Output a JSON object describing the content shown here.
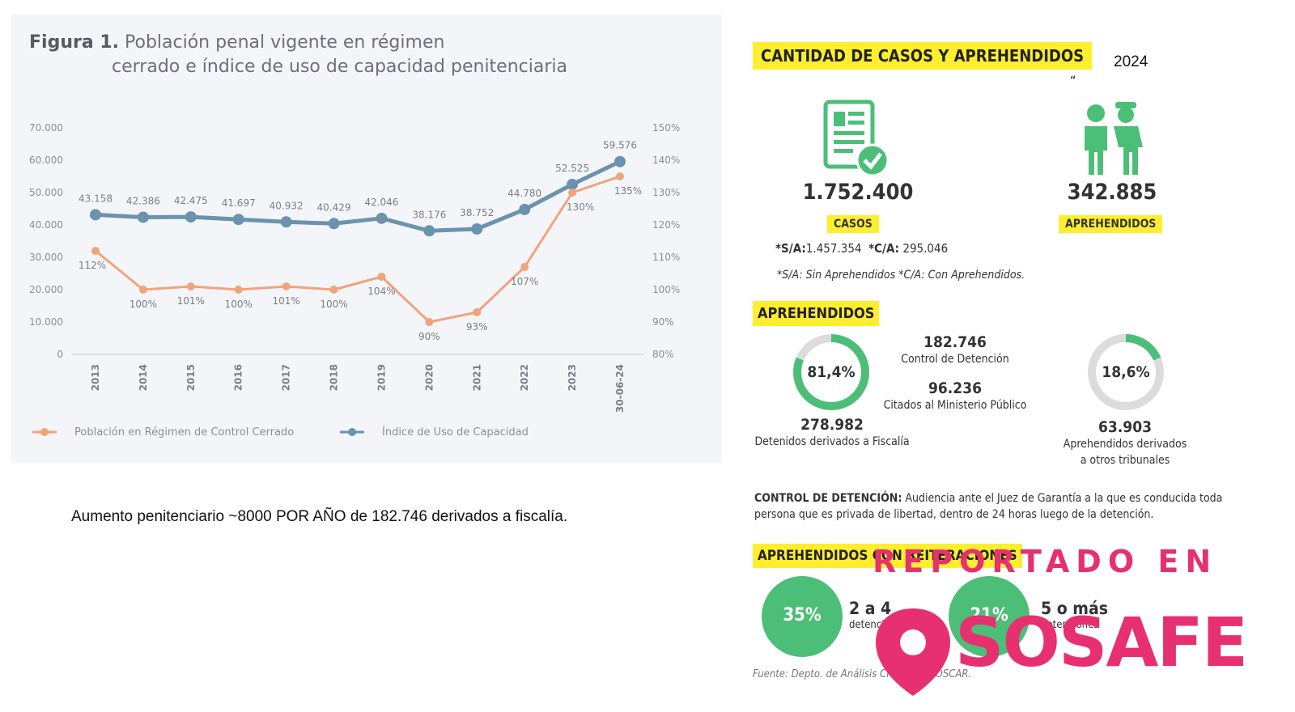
{
  "chart_data": {
    "type": "line",
    "title_label": "Figura 1.",
    "title_line1": "Población penal vigente en régimen",
    "title_line2": "cerrado e índice de uso de capacidad penitenciaria",
    "categories": [
      "2013",
      "2014",
      "2015",
      "2016",
      "2017",
      "2018",
      "2019",
      "2020",
      "2021",
      "2022",
      "2023",
      "30-06-24"
    ],
    "y_left_ticks": [
      "70.000",
      "60.000",
      "50.000",
      "40.000",
      "30.000",
      "20.000",
      "10.000",
      "0"
    ],
    "y_right_ticks": [
      "150%",
      "140%",
      "130%",
      "120%",
      "110%",
      "100%",
      "90%",
      "80%"
    ],
    "ylim_left": [
      0,
      70000
    ],
    "ylim_right": [
      80,
      150
    ],
    "grid": false,
    "legend_position": "bottom",
    "series": [
      {
        "name": "Índice de Uso de Capacidad",
        "color": "#6b93ad",
        "axis": "left",
        "values": [
          43158,
          42386,
          42475,
          41697,
          40932,
          40429,
          42046,
          38176,
          38752,
          44780,
          52525,
          59576
        ],
        "labels": [
          "43.158",
          "42.386",
          "42.475",
          "41.697",
          "40.932",
          "40.429",
          "42.046",
          "38.176",
          "38.752",
          "44.780",
          "52.525",
          "59.576"
        ]
      },
      {
        "name": "Población en Régimen de Control Cerrado",
        "color": "#f0a47c",
        "axis": "right",
        "values": [
          112,
          100,
          101,
          100,
          101,
          100,
          104,
          90,
          93,
          107,
          130,
          135
        ],
        "labels": [
          "112%",
          "100%",
          "101%",
          "100%",
          "101%",
          "100%",
          "104%",
          "90%",
          "93%",
          "107%",
          "130%",
          "135%"
        ]
      }
    ]
  },
  "note": "Aumento penitenciario ~8000 POR AÑO de 182.746 derivados a fiscalía.",
  "infographic": {
    "header": "CANTIDAD DE CASOS Y APREHENDIDOS",
    "year": "2024",
    "quote_mark": "“",
    "casos_value": "1.752.400",
    "casos_label": "CASOS",
    "aprehendidos_value": "342.885",
    "aprehendidos_label": "APREHENDIDOS",
    "sa_label": "*S/A:",
    "sa_value": "1.457.354",
    "ca_label": "*C/A:",
    "ca_value": "295.046",
    "sa_ca_note": "*S/A: Sin Aprehendidos *C/A: Con Aprehendidos.",
    "aprehendidos_header": "APREHENDIDOS",
    "ring1_pct": "81,4%",
    "ring1_fraction": 0.814,
    "ring2_pct": "18,6%",
    "ring2_fraction": 0.186,
    "control_value": "182.746",
    "control_label": "Control de Detención",
    "citados_value": "96.236",
    "citados_label": "Citados al Ministerio Público",
    "fiscalia_value": "278.982",
    "fiscalia_label": "Detenidos derivados a Fiscalía",
    "tribunales_value": "63.903",
    "tribunales_label1": "Aprehendidos derivados",
    "tribunales_label2": "a otros tribunales",
    "definition_term": "CONTROL DE DETENCIÓN:",
    "definition_text": "Audiencia ante el Juez de Garantía a la que es conducida toda persona que es privada de libertad, dentro de 24 horas luego de la detención.",
    "reiteraciones_header": "APREHENDIDOS CON REITERACIONES",
    "circle1_pct": "35%",
    "circle1_label": "2 a 4",
    "circle1_sub": "detenciones",
    "circle2_pct": "21%",
    "circle2_label": "5 o más",
    "circle2_sub": "detenciones",
    "source": "Fuente: Depto. de Análisis Criminal, DIOSCAR.",
    "green": "#4cbe78",
    "yellow": "#ffee2e"
  },
  "watermark": {
    "line1": "REPORTADO EN",
    "line2": "SOSAFE",
    "color": "#e6306f"
  }
}
